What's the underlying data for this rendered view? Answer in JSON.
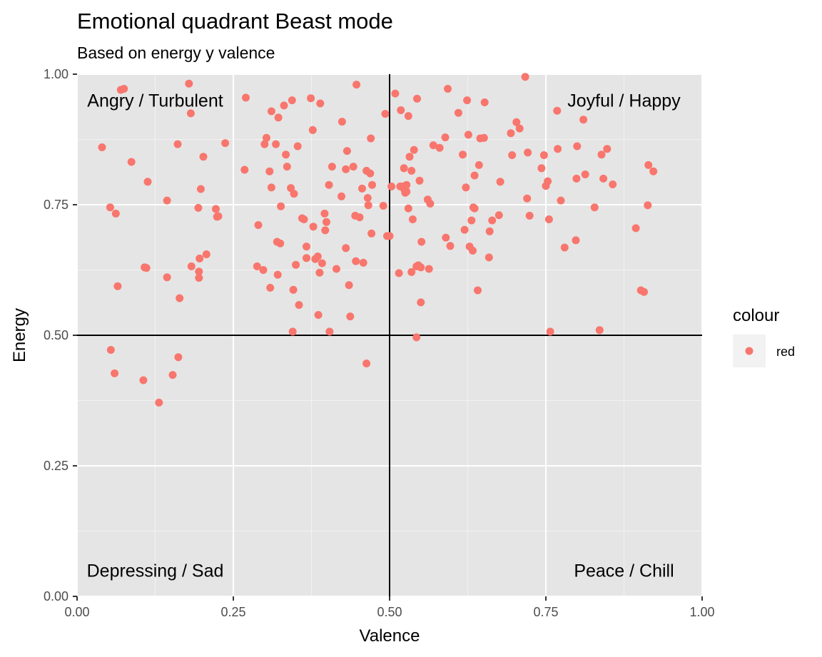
{
  "chart_data": {
    "type": "scatter",
    "title": "Emotional quadrant Beast mode",
    "subtitle": "Based on energy y valence",
    "xlabel": "Valence",
    "ylabel": "Energy",
    "xlim": [
      0,
      1
    ],
    "ylim": [
      0,
      1
    ],
    "x_ticks": [
      "0.00",
      "0.25",
      "0.50",
      "0.75",
      "1.00"
    ],
    "y_ticks": [
      "0.00",
      "0.25",
      "0.50",
      "0.75",
      "1.00"
    ],
    "grid": true,
    "reference_lines": {
      "vertical_x": 0.5,
      "horizontal_y": 0.5
    },
    "annotations": [
      {
        "text": "Angry / Turbulent",
        "x": 0.125,
        "y": 0.95,
        "anchor": "middle"
      },
      {
        "text": "Joyful / Happy",
        "x": 0.875,
        "y": 0.95,
        "anchor": "middle"
      },
      {
        "text": "Depressing / Sad",
        "x": 0.125,
        "y": 0.05,
        "anchor": "middle"
      },
      {
        "text": "Peace / Chill",
        "x": 0.875,
        "y": 0.05,
        "anchor": "middle"
      }
    ],
    "legend": {
      "title": "colour",
      "placement": "right",
      "entries": [
        {
          "label": "red",
          "color": "#F8766D"
        }
      ]
    },
    "point_color": "#F8766D",
    "panel_background": "#E5E5E5",
    "points": [
      [
        0.04,
        0.86
      ],
      [
        0.053,
        0.745
      ],
      [
        0.062,
        0.733
      ],
      [
        0.065,
        0.594
      ],
      [
        0.07,
        0.97
      ],
      [
        0.075,
        0.972
      ],
      [
        0.087,
        0.832
      ],
      [
        0.054,
        0.472
      ],
      [
        0.06,
        0.427
      ],
      [
        0.108,
        0.63
      ],
      [
        0.111,
        0.629
      ],
      [
        0.106,
        0.414
      ],
      [
        0.113,
        0.794
      ],
      [
        0.131,
        0.371
      ],
      [
        0.144,
        0.758
      ],
      [
        0.144,
        0.611
      ],
      [
        0.153,
        0.424
      ],
      [
        0.161,
        0.866
      ],
      [
        0.162,
        0.458
      ],
      [
        0.164,
        0.571
      ],
      [
        0.179,
        0.982
      ],
      [
        0.182,
        0.925
      ],
      [
        0.183,
        0.632
      ],
      [
        0.194,
        0.744
      ],
      [
        0.195,
        0.622
      ],
      [
        0.195,
        0.61
      ],
      [
        0.196,
        0.647
      ],
      [
        0.198,
        0.78
      ],
      [
        0.202,
        0.842
      ],
      [
        0.207,
        0.655
      ],
      [
        0.222,
        0.742
      ],
      [
        0.224,
        0.727
      ],
      [
        0.226,
        0.728
      ],
      [
        0.237,
        0.868
      ],
      [
        0.268,
        0.817
      ],
      [
        0.27,
        0.955
      ],
      [
        0.288,
        0.632
      ],
      [
        0.29,
        0.711
      ],
      [
        0.298,
        0.625
      ],
      [
        0.3,
        0.866
      ],
      [
        0.303,
        0.878
      ],
      [
        0.308,
        0.814
      ],
      [
        0.309,
        0.591
      ],
      [
        0.311,
        0.929
      ],
      [
        0.311,
        0.783
      ],
      [
        0.318,
        0.866
      ],
      [
        0.32,
        0.679
      ],
      [
        0.321,
        0.616
      ],
      [
        0.322,
        0.917
      ],
      [
        0.325,
        0.676
      ],
      [
        0.326,
        0.747
      ],
      [
        0.331,
        0.94
      ],
      [
        0.334,
        0.846
      ],
      [
        0.336,
        0.823
      ],
      [
        0.342,
        0.782
      ],
      [
        0.344,
        0.95
      ],
      [
        0.345,
        0.507
      ],
      [
        0.346,
        0.587
      ],
      [
        0.347,
        0.771
      ],
      [
        0.35,
        0.635
      ],
      [
        0.353,
        0.862
      ],
      [
        0.355,
        0.558
      ],
      [
        0.36,
        0.724
      ],
      [
        0.363,
        0.722
      ],
      [
        0.367,
        0.67
      ],
      [
        0.367,
        0.648
      ],
      [
        0.374,
        0.954
      ],
      [
        0.377,
        0.893
      ],
      [
        0.378,
        0.708
      ],
      [
        0.381,
        0.646
      ],
      [
        0.385,
        0.651
      ],
      [
        0.386,
        0.539
      ],
      [
        0.388,
        0.62
      ],
      [
        0.389,
        0.944
      ],
      [
        0.392,
        0.638
      ],
      [
        0.396,
        0.733
      ],
      [
        0.397,
        0.701
      ],
      [
        0.399,
        0.717
      ],
      [
        0.403,
        0.788
      ],
      [
        0.404,
        0.507
      ],
      [
        0.408,
        0.823
      ],
      [
        0.415,
        0.627
      ],
      [
        0.423,
        0.766
      ],
      [
        0.424,
        0.909
      ],
      [
        0.43,
        0.818
      ],
      [
        0.43,
        0.667
      ],
      [
        0.432,
        0.853
      ],
      [
        0.435,
        0.596
      ],
      [
        0.437,
        0.536
      ],
      [
        0.442,
        0.823
      ],
      [
        0.445,
        0.729
      ],
      [
        0.446,
        0.642
      ],
      [
        0.447,
        0.98
      ],
      [
        0.452,
        0.726
      ],
      [
        0.456,
        0.781
      ],
      [
        0.458,
        0.639
      ],
      [
        0.463,
        0.446
      ],
      [
        0.463,
        0.815
      ],
      [
        0.465,
        0.763
      ],
      [
        0.466,
        0.749
      ],
      [
        0.469,
        0.81
      ],
      [
        0.47,
        0.877
      ],
      [
        0.471,
        0.695
      ],
      [
        0.472,
        0.788
      ],
      [
        0.49,
        0.748
      ],
      [
        0.493,
        0.924
      ],
      [
        0.496,
        0.69
      ],
      [
        0.5,
        0.69
      ],
      [
        0.503,
        0.785
      ],
      [
        0.509,
        0.963
      ],
      [
        0.515,
        0.619
      ],
      [
        0.517,
        0.785
      ],
      [
        0.518,
        0.931
      ],
      [
        0.52,
        0.785
      ],
      [
        0.523,
        0.82
      ],
      [
        0.524,
        0.778
      ],
      [
        0.525,
        0.773
      ],
      [
        0.526,
        0.786
      ],
      [
        0.527,
        0.775
      ],
      [
        0.527,
        0.788
      ],
      [
        0.53,
        0.743
      ],
      [
        0.53,
        0.92
      ],
      [
        0.532,
        0.842
      ],
      [
        0.535,
        0.815
      ],
      [
        0.535,
        0.621
      ],
      [
        0.537,
        0.722
      ],
      [
        0.539,
        0.855
      ],
      [
        0.543,
        0.632
      ],
      [
        0.543,
        0.496
      ],
      [
        0.544,
        0.953
      ],
      [
        0.546,
        0.634
      ],
      [
        0.548,
        0.796
      ],
      [
        0.55,
        0.63
      ],
      [
        0.55,
        0.563
      ],
      [
        0.551,
        0.679
      ],
      [
        0.561,
        0.76
      ],
      [
        0.563,
        0.627
      ],
      [
        0.565,
        0.752
      ],
      [
        0.57,
        0.864
      ],
      [
        0.58,
        0.859
      ],
      [
        0.589,
        0.879
      ],
      [
        0.59,
        0.687
      ],
      [
        0.593,
        0.972
      ],
      [
        0.597,
        0.671
      ],
      [
        0.61,
        0.926
      ],
      [
        0.617,
        0.846
      ],
      [
        0.62,
        0.702
      ],
      [
        0.622,
        0.783
      ],
      [
        0.624,
        0.95
      ],
      [
        0.626,
        0.884
      ],
      [
        0.628,
        0.67
      ],
      [
        0.631,
        0.72
      ],
      [
        0.633,
        0.662
      ],
      [
        0.634,
        0.745
      ],
      [
        0.636,
        0.743
      ],
      [
        0.636,
        0.806
      ],
      [
        0.641,
        0.586
      ],
      [
        0.643,
        0.826
      ],
      [
        0.645,
        0.877
      ],
      [
        0.651,
        0.878
      ],
      [
        0.652,
        0.946
      ],
      [
        0.659,
        0.649
      ],
      [
        0.66,
        0.699
      ],
      [
        0.664,
        0.72
      ],
      [
        0.675,
        0.73
      ],
      [
        0.677,
        0.794
      ],
      [
        0.694,
        0.887
      ],
      [
        0.696,
        0.845
      ],
      [
        0.703,
        0.908
      ],
      [
        0.708,
        0.896
      ],
      [
        0.717,
        0.995
      ],
      [
        0.72,
        0.762
      ],
      [
        0.721,
        0.85
      ],
      [
        0.724,
        0.729
      ],
      [
        0.743,
        0.82
      ],
      [
        0.747,
        0.845
      ],
      [
        0.75,
        0.786
      ],
      [
        0.753,
        0.795
      ],
      [
        0.755,
        0.722
      ],
      [
        0.757,
        0.507
      ],
      [
        0.768,
        0.93
      ],
      [
        0.769,
        0.857
      ],
      [
        0.774,
        0.758
      ],
      [
        0.78,
        0.668
      ],
      [
        0.798,
        0.682
      ],
      [
        0.799,
        0.8
      ],
      [
        0.8,
        0.862
      ],
      [
        0.81,
        0.913
      ],
      [
        0.813,
        0.808
      ],
      [
        0.828,
        0.745
      ],
      [
        0.836,
        0.51
      ],
      [
        0.839,
        0.846
      ],
      [
        0.842,
        0.8
      ],
      [
        0.848,
        0.857
      ],
      [
        0.857,
        0.789
      ],
      [
        0.894,
        0.705
      ],
      [
        0.902,
        0.586
      ],
      [
        0.907,
        0.583
      ],
      [
        0.913,
        0.749
      ],
      [
        0.914,
        0.826
      ],
      [
        0.922,
        0.814
      ]
    ]
  }
}
